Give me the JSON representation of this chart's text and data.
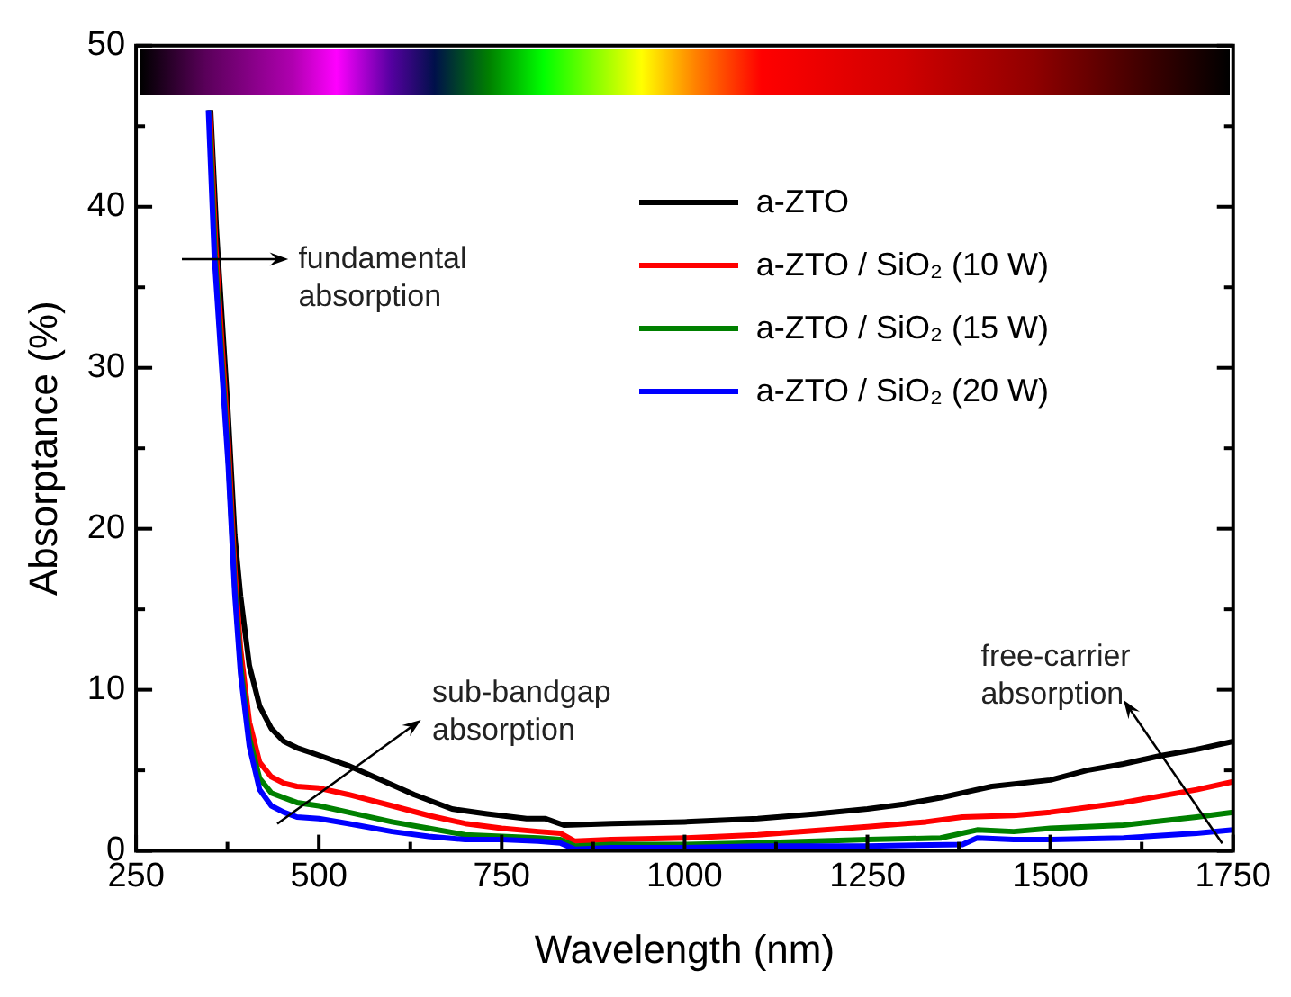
{
  "chart_data": {
    "type": "line",
    "xlabel": "Wavelength (nm)",
    "ylabel": "Absorptance (%)",
    "xlim": [
      250,
      1750
    ],
    "ylim": [
      0,
      50
    ],
    "xticks": [
      250,
      {
        "value": 375,
        "label": null
      },
      500,
      {
        "value": 625,
        "label": null
      },
      750,
      {
        "value": 875,
        "label": null
      },
      1000,
      {
        "value": 1125,
        "label": null
      },
      1250,
      {
        "value": 1375,
        "label": null
      },
      1500,
      {
        "value": 1625,
        "label": null
      },
      1750
    ],
    "yticks": [
      0,
      {
        "value": 5,
        "label": null
      },
      10,
      {
        "value": 15,
        "label": null
      },
      20,
      {
        "value": 25,
        "label": null
      },
      30,
      {
        "value": 35,
        "label": null
      },
      40,
      {
        "value": 45,
        "label": null
      },
      50
    ],
    "grid": false,
    "legend": "top right",
    "marker": "none",
    "line_style": "solid",
    "annotations": [
      "fundamental absorption",
      "sub-bandgap absorption",
      "free-carrier absorption"
    ],
    "series": [
      {
        "name": "a-ZTO",
        "color": "#000000",
        "x": [
          352,
          360,
          376,
          385,
          393,
          405,
          419,
          435,
          452,
          470,
          496,
          540,
          580,
          630,
          682,
          730,
          784,
          810,
          835,
          900,
          1000,
          1100,
          1180,
          1250,
          1300,
          1350,
          1380,
          1420,
          1500,
          1550,
          1600,
          1650,
          1700,
          1750
        ],
        "values": [
          46.0,
          38.5,
          27.1,
          19.6,
          15.8,
          11.5,
          9.0,
          7.6,
          6.8,
          6.4,
          6.0,
          5.3,
          4.5,
          3.5,
          2.6,
          2.3,
          2.0,
          2.0,
          1.6,
          1.7,
          1.8,
          2.0,
          2.3,
          2.6,
          2.9,
          3.3,
          3.6,
          4.0,
          4.4,
          5.0,
          5.4,
          5.9,
          6.3,
          6.8
        ]
      },
      {
        "name": "a-ZTO / SiO₂ (10 W)",
        "color": "#ff0000",
        "x": [
          351,
          359,
          376,
          385,
          393,
          405,
          419,
          435,
          452,
          470,
          500,
          540,
          600,
          650,
          700,
          750,
          800,
          830,
          850,
          900,
          1000,
          1100,
          1250,
          1330,
          1380,
          1450,
          1500,
          1600,
          1700,
          1750
        ],
        "values": [
          46.0,
          37.5,
          25.5,
          17.5,
          12.5,
          8.0,
          5.5,
          4.6,
          4.2,
          4.0,
          3.9,
          3.5,
          2.8,
          2.2,
          1.7,
          1.4,
          1.2,
          1.1,
          0.6,
          0.7,
          0.8,
          1.0,
          1.5,
          1.8,
          2.1,
          2.2,
          2.4,
          3.0,
          3.8,
          4.3
        ]
      },
      {
        "name": "a-ZTO / SiO₂ (15 W)",
        "color": "#008000",
        "x": [
          350,
          358,
          376,
          385,
          393,
          405,
          419,
          435,
          452,
          470,
          500,
          540,
          600,
          650,
          700,
          750,
          800,
          830,
          850,
          900,
          1000,
          1100,
          1250,
          1350,
          1400,
          1450,
          1500,
          1600,
          1700,
          1750
        ],
        "values": [
          46.0,
          37.0,
          24.5,
          16.5,
          11.5,
          7.0,
          4.5,
          3.6,
          3.3,
          3.0,
          2.8,
          2.4,
          1.8,
          1.4,
          1.0,
          0.9,
          0.8,
          0.7,
          0.3,
          0.4,
          0.4,
          0.5,
          0.7,
          0.8,
          1.3,
          1.2,
          1.4,
          1.6,
          2.1,
          2.4
        ]
      },
      {
        "name": "a-ZTO / SiO₂ (20 W)",
        "color": "#0000ff",
        "x": [
          349,
          357,
          376,
          385,
          393,
          405,
          419,
          435,
          452,
          470,
          500,
          540,
          600,
          650,
          700,
          750,
          800,
          830,
          850,
          900,
          1000,
          1100,
          1250,
          1380,
          1400,
          1450,
          1500,
          1600,
          1700,
          1750
        ],
        "values": [
          46.0,
          37.0,
          24.0,
          16.0,
          11.0,
          6.5,
          3.8,
          2.8,
          2.4,
          2.1,
          2.0,
          1.7,
          1.2,
          0.9,
          0.7,
          0.7,
          0.6,
          0.5,
          0.1,
          0.2,
          0.2,
          0.3,
          0.3,
          0.4,
          0.8,
          0.7,
          0.7,
          0.8,
          1.1,
          1.3
        ]
      }
    ]
  }
}
